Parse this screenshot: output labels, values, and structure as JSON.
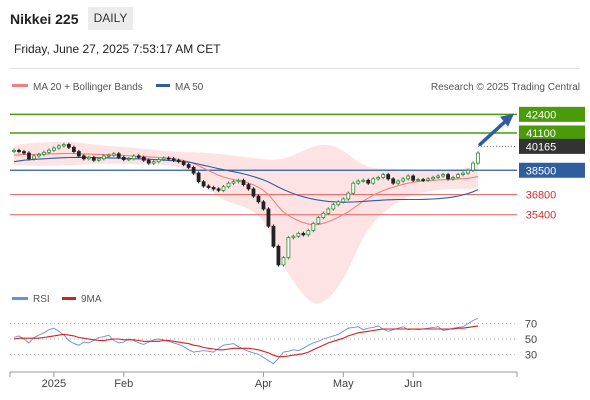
{
  "header": {
    "title": "Nikkei 225",
    "period_label": "DAILY",
    "datetime": "Friday, June 27, 2025 7:53:17 AM CET",
    "credit": "Research © 2025 Trading Central"
  },
  "colors": {
    "bull_candle": "#2e8b3e",
    "bear_candle": "#222222",
    "ma20": "#f08080",
    "bollinger_fill": "#fde3e3",
    "ma50": "#2f5d9e",
    "resistance": "#4a9a0a",
    "pivot": "#2f5d9e",
    "support": "#e06060",
    "current": "#333333",
    "arrow": "#2f5d9e",
    "rsi": "#6a8fd8",
    "rsi_ma": "#d42020"
  },
  "chart_data": [
    {
      "type": "candlestick",
      "legend": [
        {
          "name": "MA 20 + Bollinger Bands",
          "color": "#f08080"
        },
        {
          "name": "MA 50",
          "color": "#2f5d9e"
        }
      ],
      "x_ticks": [
        "2025",
        "Feb",
        "Apr",
        "May",
        "Jun"
      ],
      "ylim": [
        30500,
        43400
      ],
      "current_price": 40165,
      "levels": [
        {
          "value": 42400,
          "label": "42400",
          "kind": "resistance"
        },
        {
          "value": 41100,
          "label": "41100",
          "kind": "resistance"
        },
        {
          "value": 40165,
          "label": "40165",
          "kind": "current"
        },
        {
          "value": 38500,
          "label": "38500",
          "kind": "pivot"
        },
        {
          "value": 36800,
          "label": "36800",
          "kind": "support"
        },
        {
          "value": 35400,
          "label": "35400",
          "kind": "support"
        }
      ],
      "arrow": {
        "from": 40300,
        "to": 42300
      },
      "close": [
        39890,
        39800,
        39700,
        39300,
        39500,
        39600,
        39750,
        39900,
        40050,
        40200,
        40300,
        40100,
        39800,
        39500,
        39300,
        39400,
        39200,
        39300,
        39500,
        39550,
        39650,
        39400,
        39250,
        39300,
        39500,
        39400,
        39200,
        39000,
        39100,
        39250,
        39350,
        39300,
        39200,
        39100,
        38900,
        38700,
        38300,
        37700,
        37400,
        37300,
        37200,
        37100,
        37350,
        37600,
        37700,
        37800,
        37500,
        37200,
        36700,
        36300,
        35800,
        34600,
        33200,
        31900,
        32400,
        33800,
        33900,
        34100,
        34000,
        34300,
        34800,
        35200,
        35500,
        35800,
        36100,
        36300,
        36500,
        36900,
        37600,
        37750,
        37800,
        37600,
        37900,
        38000,
        38200,
        37900,
        37600,
        37750,
        37900,
        38100,
        37800,
        37850,
        37800,
        37900,
        38000,
        38100,
        38200,
        37900,
        38000,
        38200,
        38300,
        38500,
        39000,
        39700
      ],
      "ma20": [
        39550,
        39580,
        39600,
        39600,
        39610,
        39620,
        39630,
        39640,
        39650,
        39660,
        39670,
        39670,
        39660,
        39650,
        39640,
        39630,
        39620,
        39600,
        39590,
        39580,
        39570,
        39550,
        39530,
        39510,
        39490,
        39470,
        39450,
        39430,
        39410,
        39390,
        39370,
        39340,
        39300,
        39250,
        39180,
        39100,
        38980,
        38820,
        38650,
        38480,
        38310,
        38150,
        38030,
        37930,
        37850,
        37780,
        37700,
        37600,
        37480,
        37320,
        37100,
        36800,
        36400,
        35950,
        35600,
        35350,
        35150,
        34980,
        34850,
        34750,
        34700,
        34720,
        34800,
        34920,
        35060,
        35220,
        35400,
        35600,
        35850,
        36100,
        36350,
        36550,
        36750,
        36920,
        37080,
        37210,
        37330,
        37430,
        37520,
        37600,
        37660,
        37710,
        37750,
        37780,
        37800,
        37820,
        37840,
        37850,
        37870,
        37890,
        37910,
        37940,
        37990,
        38060
      ],
      "bb_upper": [
        40250,
        40300,
        40350,
        40380,
        40400,
        40420,
        40440,
        40460,
        40470,
        40480,
        40480,
        40470,
        40450,
        40420,
        40380,
        40340,
        40300,
        40260,
        40230,
        40200,
        40180,
        40150,
        40120,
        40090,
        40060,
        40030,
        40000,
        39960,
        39920,
        39880,
        39850,
        39820,
        39800,
        39780,
        39770,
        39760,
        39750,
        39740,
        39720,
        39700,
        39670,
        39640,
        39600,
        39560,
        39520,
        39480,
        39440,
        39400,
        39360,
        39320,
        39280,
        39250,
        39240,
        39260,
        39320,
        39420,
        39550,
        39700,
        39860,
        40020,
        40150,
        40240,
        40280,
        40260,
        40180,
        40040,
        39850,
        39620,
        39350,
        39100,
        38900,
        38760,
        38680,
        38640,
        38620,
        38610,
        38600,
        38590,
        38580,
        38570,
        38560,
        38550,
        38540,
        38530,
        38520,
        38510,
        38510,
        38520,
        38540,
        38570,
        38610,
        38670,
        38760,
        38900
      ],
      "bb_lower": [
        38850,
        38860,
        38850,
        38820,
        38820,
        38820,
        38820,
        38820,
        38830,
        38840,
        38860,
        38870,
        38870,
        38880,
        38900,
        38920,
        38940,
        38940,
        38950,
        38960,
        38960,
        38950,
        38940,
        38930,
        38920,
        38910,
        38900,
        38900,
        38900,
        38900,
        38890,
        38860,
        38800,
        38720,
        38590,
        38440,
        38210,
        37900,
        37580,
        37260,
        36950,
        36660,
        36460,
        36300,
        36180,
        36080,
        35960,
        35800,
        35600,
        35320,
        34920,
        34350,
        33560,
        32640,
        31880,
        31280,
        30750,
        30260,
        29840,
        29480,
        29250,
        29200,
        29320,
        29580,
        29940,
        30400,
        30950,
        31580,
        32350,
        33100,
        33800,
        34340,
        34820,
        35200,
        35540,
        35810,
        36060,
        36270,
        36460,
        36630,
        36760,
        36870,
        36960,
        37030,
        37080,
        37130,
        37170,
        37180,
        37200,
        37210,
        37210,
        37210,
        37220,
        37220
      ],
      "ma50": [
        39100,
        39150,
        39200,
        39230,
        39260,
        39280,
        39300,
        39320,
        39340,
        39360,
        39380,
        39390,
        39400,
        39400,
        39400,
        39400,
        39390,
        39380,
        39370,
        39360,
        39350,
        39340,
        39330,
        39320,
        39310,
        39300,
        39290,
        39270,
        39250,
        39230,
        39210,
        39190,
        39160,
        39130,
        39100,
        39060,
        39000,
        38930,
        38850,
        38770,
        38690,
        38610,
        38540,
        38470,
        38400,
        38330,
        38250,
        38160,
        38060,
        37950,
        37830,
        37680,
        37510,
        37330,
        37160,
        37010,
        36870,
        36750,
        36650,
        36560,
        36480,
        36420,
        36370,
        36330,
        36300,
        36280,
        36270,
        36280,
        36290,
        36310,
        36330,
        36350,
        36380,
        36400,
        36420,
        36440,
        36450,
        36460,
        36460,
        36460,
        36460,
        36460,
        36470,
        36480,
        36500,
        36520,
        36550,
        36590,
        36640,
        36700,
        36780,
        36880,
        37000,
        37150
      ]
    },
    {
      "type": "line",
      "legend": [
        {
          "name": "RSI",
          "color": "#6a8fd8"
        },
        {
          "name": "9MA",
          "color": "#d42020"
        }
      ],
      "y_ticks": [
        "70",
        "50",
        "30"
      ],
      "ylim": [
        15,
        85
      ],
      "rsi": [
        52,
        54,
        50,
        45,
        52,
        55,
        58,
        62,
        64,
        60,
        55,
        48,
        44,
        42,
        46,
        45,
        48,
        52,
        53,
        55,
        48,
        45,
        46,
        50,
        48,
        45,
        43,
        46,
        49,
        50,
        49,
        47,
        45,
        43,
        40,
        36,
        33,
        34,
        35,
        34,
        33,
        38,
        42,
        43,
        44,
        40,
        37,
        34,
        32,
        30,
        26,
        22,
        18,
        25,
        33,
        34,
        36,
        35,
        38,
        42,
        45,
        47,
        50,
        52,
        54,
        56,
        60,
        64,
        65,
        66,
        62,
        64,
        65,
        67,
        63,
        60,
        62,
        64,
        66,
        62,
        63,
        62,
        63,
        64,
        65,
        66,
        61,
        62,
        64,
        65,
        66,
        70,
        74,
        77
      ],
      "rsi_ma": [
        50,
        51,
        51,
        51,
        51,
        51,
        52,
        53,
        54,
        55,
        56,
        55,
        54,
        52,
        51,
        50,
        49,
        48,
        48,
        49,
        50,
        50,
        49,
        49,
        49,
        48,
        47,
        47,
        47,
        47,
        48,
        48,
        47,
        46,
        45,
        44,
        42,
        41,
        39,
        38,
        37,
        36,
        36,
        37,
        38,
        38,
        38,
        38,
        37,
        36,
        34,
        32,
        29,
        27,
        27,
        28,
        29,
        30,
        31,
        33,
        36,
        39,
        42,
        45,
        47,
        49,
        51,
        54,
        56,
        58,
        59,
        60,
        61,
        62,
        63,
        63,
        63,
        63,
        63,
        63,
        63,
        63,
        63,
        63,
        63,
        63,
        63,
        63,
        63,
        64,
        64,
        65,
        66,
        67
      ]
    }
  ]
}
